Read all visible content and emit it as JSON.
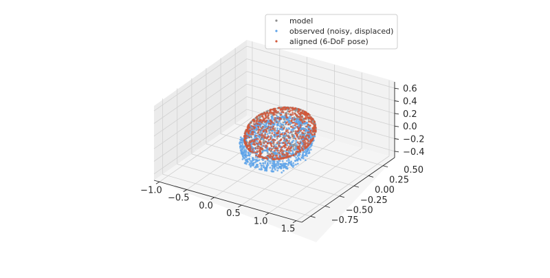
{
  "chart_data": {
    "type": "scatter",
    "projection": "3d",
    "title": "",
    "xlabel": "",
    "ylabel": "",
    "zlabel": "",
    "xlim": [
      -1.1,
      1.6
    ],
    "ylim": [
      -0.9,
      0.7
    ],
    "zlim": [
      -0.5,
      0.7
    ],
    "x_ticks": [
      "−1.0",
      "−0.5",
      "0.0",
      "0.5",
      "1.0",
      "1.5"
    ],
    "y_ticks": [
      "−0.75",
      "−0.50",
      "−0.25",
      "0.00",
      "0.25",
      "0.50"
    ],
    "z_ticks": [
      "−0.4",
      "−0.2",
      "0.0",
      "0.2",
      "0.4",
      "0.6"
    ],
    "grid": true,
    "legend_position": "top-right",
    "series": [
      {
        "name": "model",
        "color": "#8c8c8c",
        "shape": "ellipsoid",
        "center": [
          0.25,
          0.0,
          0.0
        ],
        "semi_axes": [
          0.5,
          0.4,
          0.3
        ],
        "n_points": 700
      },
      {
        "name": "observed (noisy, displaced)",
        "color": "#5da2e8",
        "shape": "ellipsoid",
        "center": [
          0.45,
          -0.25,
          0.05
        ],
        "semi_axes": [
          0.5,
          0.4,
          0.3
        ],
        "n_points": 900
      },
      {
        "name": "aligned (6-DoF pose)",
        "color": "#d2583a",
        "shape": "ellipsoid",
        "center": [
          0.25,
          0.0,
          0.0
        ],
        "semi_axes": [
          0.5,
          0.4,
          0.3
        ],
        "n_points": 700
      }
    ]
  }
}
